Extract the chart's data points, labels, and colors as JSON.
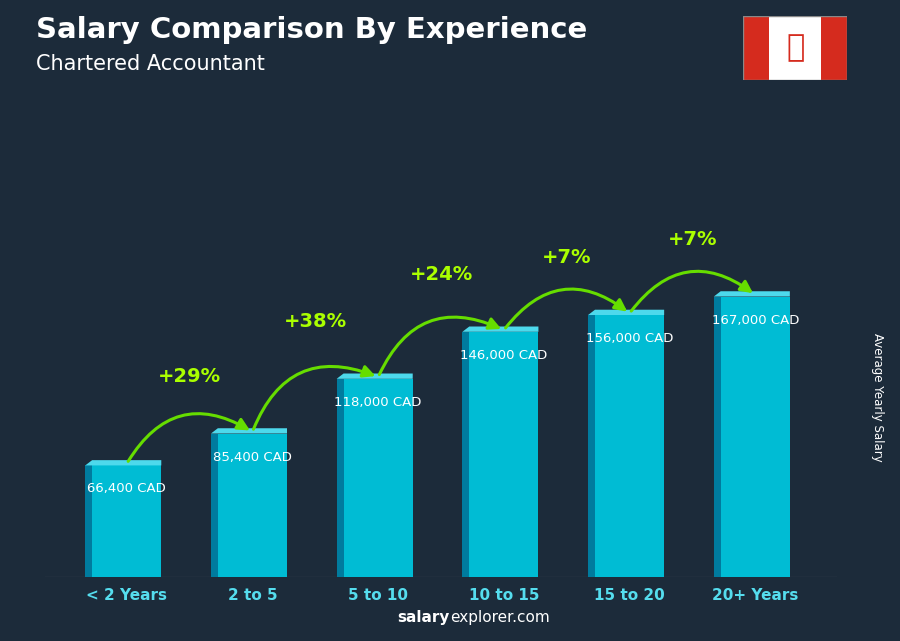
{
  "categories": [
    "< 2 Years",
    "2 to 5",
    "5 to 10",
    "10 to 15",
    "15 to 20",
    "20+ Years"
  ],
  "values": [
    66400,
    85400,
    118000,
    146000,
    156000,
    167000
  ],
  "value_labels": [
    "66,400 CAD",
    "85,400 CAD",
    "118,000 CAD",
    "146,000 CAD",
    "156,000 CAD",
    "167,000 CAD"
  ],
  "pct_labels": [
    "+29%",
    "+38%",
    "+24%",
    "+7%",
    "+7%"
  ],
  "title_main": "Salary Comparison By Experience",
  "title_sub": "Chartered Accountant",
  "ylabel": "Average Yearly Salary",
  "footer_bold": "salary",
  "footer_normal": "explorer.com",
  "bar_color": "#00bcd4",
  "bar_left_color": "#007b9e",
  "bar_top_color": "#4dd9ec",
  "bg_color": "#1c2b3a",
  "arrow_color": "#66dd00",
  "pct_color": "#aaff00",
  "value_color": "#ffffff",
  "xlabel_color": "#55ddee",
  "ylim_max": 210000,
  "bar_width": 0.55,
  "flag_red": "#d52b1e",
  "flag_white": "#ffffff"
}
